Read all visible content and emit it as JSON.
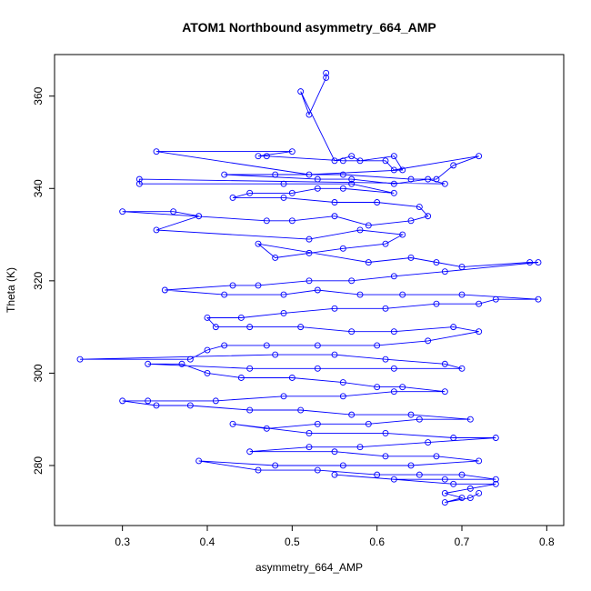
{
  "chart_data": {
    "type": "scatter",
    "title": "ATOM1 Northbound asymmetry_664_AMP",
    "xlabel": "asymmetry_664_AMP",
    "ylabel": "Theta (K)",
    "xlim": [
      0.22,
      0.82
    ],
    "ylim": [
      267,
      369
    ],
    "xticks": [
      0.3,
      0.4,
      0.5,
      0.6,
      0.7,
      0.8
    ],
    "yticks": [
      280,
      300,
      320,
      340,
      360
    ],
    "grid": false,
    "legend": "none",
    "connected": true,
    "color": "#0000ff",
    "series": [
      {
        "points": [
          [
            0.54,
            365
          ],
          [
            0.54,
            364
          ],
          [
            0.52,
            356
          ],
          [
            0.51,
            361
          ],
          [
            0.55,
            346
          ],
          [
            0.57,
            347
          ],
          [
            0.58,
            346
          ],
          [
            0.62,
            347
          ],
          [
            0.63,
            344
          ],
          [
            0.52,
            343
          ],
          [
            0.34,
            348
          ],
          [
            0.5,
            348
          ],
          [
            0.46,
            347
          ],
          [
            0.47,
            347
          ],
          [
            0.56,
            346
          ],
          [
            0.61,
            346
          ],
          [
            0.62,
            344
          ],
          [
            0.72,
            347
          ],
          [
            0.69,
            345
          ],
          [
            0.67,
            342
          ],
          [
            0.64,
            342
          ],
          [
            0.56,
            343
          ],
          [
            0.48,
            343
          ],
          [
            0.42,
            343
          ],
          [
            0.53,
            342
          ],
          [
            0.57,
            342
          ],
          [
            0.62,
            341
          ],
          [
            0.66,
            342
          ],
          [
            0.68,
            341
          ],
          [
            0.32,
            342
          ],
          [
            0.32,
            341
          ],
          [
            0.49,
            341
          ],
          [
            0.57,
            341
          ],
          [
            0.62,
            339
          ],
          [
            0.56,
            340
          ],
          [
            0.53,
            340
          ],
          [
            0.5,
            339
          ],
          [
            0.45,
            339
          ],
          [
            0.43,
            338
          ],
          [
            0.49,
            338
          ],
          [
            0.55,
            337
          ],
          [
            0.6,
            337
          ],
          [
            0.65,
            336
          ],
          [
            0.66,
            334
          ],
          [
            0.64,
            333
          ],
          [
            0.59,
            332
          ],
          [
            0.55,
            334
          ],
          [
            0.5,
            333
          ],
          [
            0.47,
            333
          ],
          [
            0.3,
            335
          ],
          [
            0.36,
            335
          ],
          [
            0.39,
            334
          ],
          [
            0.34,
            331
          ],
          [
            0.52,
            329
          ],
          [
            0.58,
            331
          ],
          [
            0.63,
            330
          ],
          [
            0.61,
            328
          ],
          [
            0.56,
            327
          ],
          [
            0.52,
            326
          ],
          [
            0.48,
            325
          ],
          [
            0.46,
            328
          ],
          [
            0.59,
            324
          ],
          [
            0.64,
            325
          ],
          [
            0.67,
            324
          ],
          [
            0.7,
            323
          ],
          [
            0.78,
            324
          ],
          [
            0.79,
            324
          ],
          [
            0.68,
            322
          ],
          [
            0.62,
            321
          ],
          [
            0.57,
            320
          ],
          [
            0.52,
            320
          ],
          [
            0.46,
            319
          ],
          [
            0.43,
            319
          ],
          [
            0.35,
            318
          ],
          [
            0.42,
            317
          ],
          [
            0.49,
            317
          ],
          [
            0.53,
            318
          ],
          [
            0.58,
            317
          ],
          [
            0.63,
            317
          ],
          [
            0.7,
            317
          ],
          [
            0.79,
            316
          ],
          [
            0.74,
            316
          ],
          [
            0.72,
            315
          ],
          [
            0.67,
            315
          ],
          [
            0.61,
            314
          ],
          [
            0.55,
            314
          ],
          [
            0.49,
            313
          ],
          [
            0.44,
            312
          ],
          [
            0.4,
            312
          ],
          [
            0.41,
            310
          ],
          [
            0.45,
            310
          ],
          [
            0.51,
            310
          ],
          [
            0.57,
            309
          ],
          [
            0.62,
            309
          ],
          [
            0.69,
            310
          ],
          [
            0.72,
            309
          ],
          [
            0.66,
            307
          ],
          [
            0.6,
            306
          ],
          [
            0.53,
            306
          ],
          [
            0.47,
            306
          ],
          [
            0.42,
            306
          ],
          [
            0.4,
            305
          ],
          [
            0.38,
            303
          ],
          [
            0.25,
            303
          ],
          [
            0.48,
            304
          ],
          [
            0.55,
            304
          ],
          [
            0.61,
            303
          ],
          [
            0.68,
            302
          ],
          [
            0.7,
            301
          ],
          [
            0.62,
            301
          ],
          [
            0.53,
            301
          ],
          [
            0.45,
            301
          ],
          [
            0.33,
            302
          ],
          [
            0.37,
            302
          ],
          [
            0.4,
            300
          ],
          [
            0.44,
            299
          ],
          [
            0.5,
            299
          ],
          [
            0.56,
            298
          ],
          [
            0.6,
            297
          ],
          [
            0.63,
            297
          ],
          [
            0.68,
            296
          ],
          [
            0.62,
            296
          ],
          [
            0.56,
            295
          ],
          [
            0.49,
            295
          ],
          [
            0.41,
            294
          ],
          [
            0.33,
            294
          ],
          [
            0.3,
            294
          ],
          [
            0.34,
            293
          ],
          [
            0.38,
            293
          ],
          [
            0.45,
            292
          ],
          [
            0.51,
            292
          ],
          [
            0.57,
            291
          ],
          [
            0.64,
            291
          ],
          [
            0.71,
            290
          ],
          [
            0.65,
            290
          ],
          [
            0.59,
            289
          ],
          [
            0.53,
            289
          ],
          [
            0.47,
            288
          ],
          [
            0.43,
            289
          ],
          [
            0.52,
            287
          ],
          [
            0.61,
            287
          ],
          [
            0.69,
            286
          ],
          [
            0.74,
            286
          ],
          [
            0.66,
            285
          ],
          [
            0.58,
            284
          ],
          [
            0.52,
            284
          ],
          [
            0.45,
            283
          ],
          [
            0.55,
            283
          ],
          [
            0.61,
            282
          ],
          [
            0.67,
            282
          ],
          [
            0.72,
            281
          ],
          [
            0.64,
            280
          ],
          [
            0.56,
            280
          ],
          [
            0.48,
            280
          ],
          [
            0.39,
            281
          ],
          [
            0.46,
            279
          ],
          [
            0.53,
            279
          ],
          [
            0.6,
            278
          ],
          [
            0.65,
            278
          ],
          [
            0.7,
            278
          ],
          [
            0.74,
            277
          ],
          [
            0.68,
            277
          ],
          [
            0.62,
            277
          ],
          [
            0.55,
            278
          ],
          [
            0.69,
            276
          ],
          [
            0.74,
            276
          ],
          [
            0.71,
            275
          ],
          [
            0.68,
            274
          ],
          [
            0.7,
            273
          ],
          [
            0.68,
            272
          ],
          [
            0.71,
            273
          ],
          [
            0.72,
            274
          ]
        ]
      }
    ]
  }
}
